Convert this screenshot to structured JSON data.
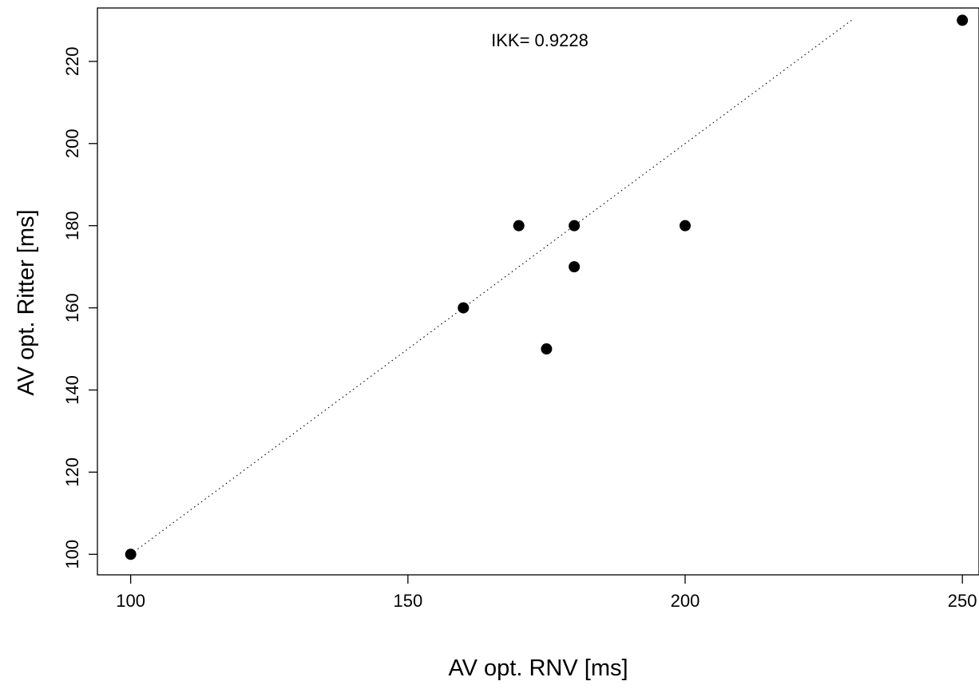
{
  "chart_data": {
    "type": "scatter",
    "xlabel": "AV opt. RNV [ms]",
    "ylabel": "AV opt. Ritter [ms]",
    "annotation": "IKK= 0.9228",
    "xlim": [
      94,
      253
    ],
    "ylim": [
      95,
      233
    ],
    "x_ticks": [
      100,
      150,
      200,
      250
    ],
    "y_ticks": [
      100,
      120,
      140,
      160,
      180,
      200,
      220
    ],
    "x_tick_labels": [
      "100",
      "150",
      "200",
      "250"
    ],
    "y_tick_labels": [
      "100",
      "120",
      "140",
      "160",
      "180",
      "200",
      "220"
    ],
    "points": [
      {
        "x": 100,
        "y": 100
      },
      {
        "x": 160,
        "y": 160
      },
      {
        "x": 170,
        "y": 180
      },
      {
        "x": 175,
        "y": 150
      },
      {
        "x": 180,
        "y": 180
      },
      {
        "x": 180,
        "y": 170
      },
      {
        "x": 200,
        "y": 180
      },
      {
        "x": 250,
        "y": 230
      }
    ],
    "reference_line": {
      "x": [
        100,
        230
      ],
      "y": [
        100,
        230
      ],
      "style": "dotted"
    },
    "grid": false,
    "marker_color": "#000000"
  }
}
